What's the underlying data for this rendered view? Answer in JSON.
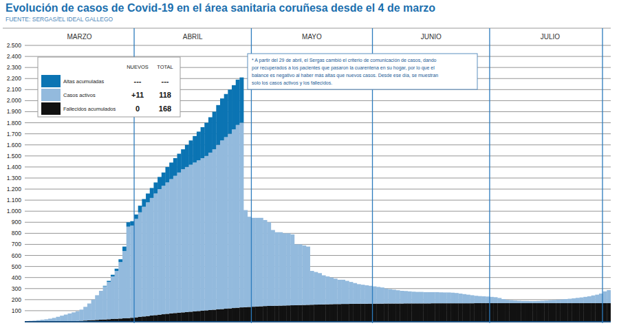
{
  "chart_data": {
    "type": "bar",
    "stacked": true,
    "grid": true,
    "legend": "upper left",
    "title": "Evolución de casos de Covid-19 en el área sanitaria coruñesa desde el 4 de marzo",
    "subtitle": "FUENTE: SERGAS/EL IDEAL GALLEGO",
    "annotation": [
      "* A partir del 29 de abril, el Sergas cambió el criterio de comunicación de casos, dando",
      "por recuperados a los pacientes que pasaron la cuarentena en su hogar, por lo que el",
      "balance es negativo al haber más altas que nuevos casos. Desde ese día, se muestran",
      "solo los casos activos y los fallecidos."
    ],
    "legend_table": {
      "headers": [
        "NUEVOS",
        "TOTAL"
      ],
      "rows": [
        [
          "---",
          "---"
        ],
        [
          "+11",
          "118"
        ],
        [
          "0",
          "168"
        ]
      ]
    },
    "categories": [
      "MARZO",
      null,
      null,
      null,
      null,
      null,
      null,
      null,
      null,
      null,
      null,
      null,
      null,
      null,
      null,
      null,
      null,
      null,
      null,
      null,
      null,
      null,
      null,
      null,
      null,
      null,
      null,
      null,
      "ABRIL",
      null,
      null,
      null,
      null,
      null,
      null,
      null,
      null,
      null,
      null,
      null,
      null,
      null,
      null,
      null,
      null,
      null,
      null,
      null,
      null,
      null,
      null,
      null,
      null,
      null,
      null,
      null,
      null,
      null,
      "MAYO",
      null,
      null,
      null,
      null,
      null,
      null,
      null,
      null,
      null,
      null,
      null,
      null,
      null,
      null,
      null,
      null,
      null,
      null,
      null,
      null,
      null,
      null,
      null,
      null,
      null,
      null,
      null,
      null,
      null,
      null,
      "JUNIO",
      null,
      null,
      null,
      null,
      null,
      null,
      null,
      null,
      null,
      null,
      null,
      null,
      null,
      null,
      null,
      null,
      null,
      null,
      null,
      null,
      null,
      null,
      null,
      null,
      null,
      null,
      null,
      null,
      null,
      "JULIO",
      null,
      null,
      null,
      null,
      null,
      null,
      null,
      null,
      null,
      null,
      null,
      null,
      null,
      null,
      null,
      null,
      null,
      null,
      null,
      null,
      null,
      null,
      null,
      null,
      null,
      null,
      null,
      null,
      null,
      null
    ],
    "ylim": [
      0,
      2500
    ],
    "yticks": [
      100,
      200,
      300,
      400,
      500,
      600,
      700,
      800,
      900,
      {
        "value": 1000,
        "label": "1.000"
      },
      {
        "value": 1100,
        "label": "1.100"
      },
      {
        "value": 1200,
        "label": "1.200"
      },
      {
        "value": 1300,
        "label": "1.300"
      },
      {
        "value": 1400,
        "label": "1.400"
      },
      {
        "value": 1500,
        "label": "1.500"
      },
      {
        "value": 1600,
        "label": "1.600"
      },
      {
        "value": 1700,
        "label": "1.700"
      },
      {
        "value": 1800,
        "label": "1.800"
      },
      {
        "value": 1900,
        "label": "1.900"
      },
      {
        "value": 2000,
        "label": "2.000"
      },
      {
        "value": 2100,
        "label": "2.100"
      },
      {
        "value": 2200,
        "label": "2.200"
      },
      {
        "value": 2300,
        "label": "2.300"
      },
      {
        "value": 2400,
        "label": "2.400"
      },
      {
        "value": 2500,
        "label": "2.500"
      }
    ],
    "series": [
      {
        "name": "Fallecidos acumulados",
        "color": "#111111",
        "values": [
          0,
          0,
          0,
          0,
          0,
          0,
          0,
          1,
          1,
          2,
          3,
          4,
          5,
          7,
          9,
          11,
          13,
          15,
          17,
          19,
          21,
          23,
          25,
          27,
          29,
          31,
          33,
          36,
          40,
          44,
          48,
          52,
          56,
          60,
          64,
          68,
          72,
          76,
          79,
          82,
          85,
          88,
          91,
          94,
          97,
          100,
          103,
          106,
          109,
          112,
          115,
          118,
          121,
          124,
          127,
          130,
          132,
          134,
          136,
          138,
          140,
          142,
          143,
          144,
          145,
          146,
          147,
          148,
          149,
          150,
          151,
          152,
          153,
          154,
          155,
          156,
          157,
          158,
          159,
          160,
          160,
          161,
          161,
          162,
          162,
          163,
          163,
          163,
          164,
          164,
          164,
          164,
          165,
          165,
          165,
          165,
          165,
          166,
          166,
          166,
          166,
          166,
          166,
          166,
          167,
          167,
          167,
          167,
          167,
          167,
          167,
          167,
          167,
          167,
          167,
          168,
          168,
          168,
          168,
          168,
          168,
          168,
          168,
          168,
          168,
          168,
          168,
          168,
          168,
          168,
          168,
          168,
          168,
          168,
          168,
          168,
          168,
          168,
          168,
          168,
          168,
          168,
          168,
          168,
          168,
          168,
          168,
          168,
          168,
          168
        ]
      },
      {
        "name": "Casos activos",
        "color": "#93badd",
        "values": [
          5,
          8,
          10,
          14,
          18,
          22,
          28,
          34,
          44,
          53,
          62,
          71,
          80,
          88,
          101,
          124,
          152,
          185,
          223,
          261,
          299,
          337,
          385,
          433,
          511,
          609,
          827,
          834,
          890,
          946,
          992,
          1028,
          1064,
          1100,
          1136,
          1162,
          1188,
          1214,
          1241,
          1268,
          1295,
          1312,
          1329,
          1346,
          1363,
          1380,
          1397,
          1424,
          1451,
          1488,
          1525,
          1552,
          1579,
          1616,
          1653,
          1670,
          878,
          816,
          804,
          802,
          800,
          778,
          757,
          686,
          665,
          664,
          653,
          652,
          641,
          550,
          549,
          538,
          527,
          306,
          295,
          284,
          263,
          252,
          241,
          230,
          220,
          219,
          209,
          198,
          188,
          177,
          172,
          167,
          161,
          156,
          151,
          146,
          135,
          130,
          125,
          120,
          115,
          112,
          109,
          106,
          104,
          104,
          102,
          102,
          101,
          101,
          99,
          98,
          98,
          96,
          93,
          88,
          83,
          78,
          73,
          67,
          64,
          62,
          60,
          57,
          54,
          47,
          37,
          30,
          27,
          24,
          22,
          20,
          20,
          19,
          19,
          20,
          22,
          24,
          27,
          29,
          32,
          34,
          37,
          40,
          44,
          48,
          52,
          57,
          62,
          70,
          77,
          87,
          107,
          118
        ]
      },
      {
        "name": "Altas acumuladas",
        "color": "#0b74b3",
        "values": [
          0,
          0,
          0,
          0,
          0,
          0,
          0,
          0,
          0,
          0,
          0,
          0,
          0,
          0,
          0,
          0,
          0,
          0,
          0,
          0,
          5,
          10,
          15,
          20,
          25,
          40,
          40,
          40,
          40,
          60,
          70,
          80,
          90,
          100,
          110,
          120,
          140,
          150,
          160,
          170,
          180,
          200,
          220,
          240,
          260,
          280,
          300,
          320,
          340,
          360,
          380,
          390,
          400,
          400,
          410,
          410,
          null,
          null,
          null,
          null,
          null,
          null,
          null,
          null,
          null,
          null,
          null,
          null,
          null,
          null,
          null,
          null,
          null,
          null,
          null,
          null,
          null,
          null,
          null,
          null,
          null,
          null,
          null,
          null,
          null,
          null,
          null,
          null,
          null,
          null,
          null,
          null,
          null,
          null,
          null,
          null,
          null,
          null,
          null,
          null,
          null,
          null,
          null,
          null,
          null,
          null,
          null,
          null,
          null,
          null,
          null,
          null,
          null,
          null,
          null,
          null,
          null,
          null,
          null,
          null,
          null,
          null,
          null,
          null,
          null,
          null,
          null,
          null,
          null,
          null,
          null,
          null,
          null,
          null,
          null,
          null,
          null,
          null,
          null,
          null,
          null,
          null,
          null,
          null,
          null,
          null,
          null,
          null,
          null,
          null
        ]
      }
    ]
  }
}
